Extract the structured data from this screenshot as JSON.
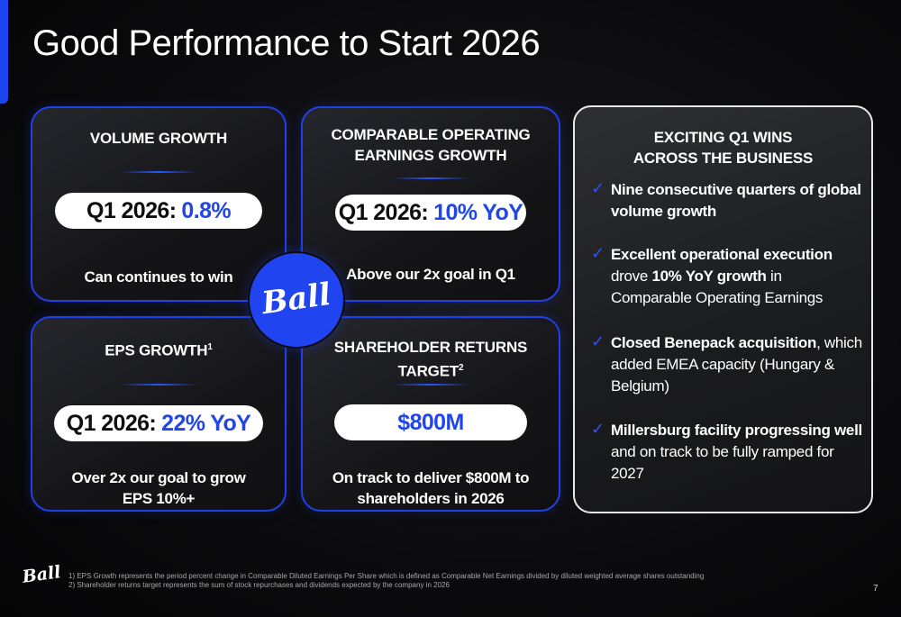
{
  "title": "Good Performance to Start 2026",
  "cards": {
    "volume": {
      "title": "VOLUME GROWTH",
      "pill_label": "Q1 2026:",
      "pill_value": "0.8%",
      "caption": "Can continues to win"
    },
    "earnings": {
      "title_line1": "COMPARABLE OPERATING",
      "title_line2": "EARNINGS GROWTH",
      "pill_label": "Q1 2026:",
      "pill_value": "10% YoY",
      "caption": "Above our 2x goal in Q1"
    },
    "eps": {
      "title": "EPS GROWTH",
      "title_sup": "1",
      "pill_label": "Q1 2026:",
      "pill_value": "22% YoY",
      "caption_line1": "Over 2x our goal to grow",
      "caption_line2": "EPS 10%+"
    },
    "shareholder": {
      "title_line1": "SHAREHOLDER RETURNS",
      "title_line2": "TARGET",
      "title_sup": "2",
      "pill_value": "$800M",
      "caption_line1": "On track to deliver $800M to",
      "caption_line2": "shareholders in 2026"
    }
  },
  "logo": {
    "text": "Ball",
    "circle_color": "#1f44f0"
  },
  "wins": {
    "title_line1": "EXCITING Q1 WINS",
    "title_line2": "ACROSS THE BUSINESS",
    "check_icon": "checkmark-icon",
    "items": [
      {
        "bold1": "Nine consecutive quarters of global volume growth",
        "text1": "",
        "bold2": "",
        "text2": ""
      },
      {
        "bold1": "Excellent operational execution",
        "text1": " drove ",
        "bold2": "10% YoY growth",
        "text2": " in Comparable Operating Earnings"
      },
      {
        "bold1": "Closed Benepack acquisition",
        "text1": ", which added EMEA capacity (Hungary & Belgium)",
        "bold2": "",
        "text2": ""
      },
      {
        "bold1": "Millersburg facility progressing well",
        "text1": " and on track to be fully ramped for 2027",
        "bold2": "",
        "text2": ""
      }
    ]
  },
  "footnotes": {
    "line1": "1) EPS Growth represents the period percent change in Comparable Diluted Earnings Per Share which is defined as Comparable Net Earnings divided by diluted weighted average shares outstanding",
    "line2": "2) Shareholder returns target represents the sum of stock repurchases and dividends expected by the company in 2026"
  },
  "page_number": "7",
  "colors": {
    "accent_blue": "#2146e8",
    "card_border": "#2140e6",
    "wins_border": "#e8e8e8"
  }
}
